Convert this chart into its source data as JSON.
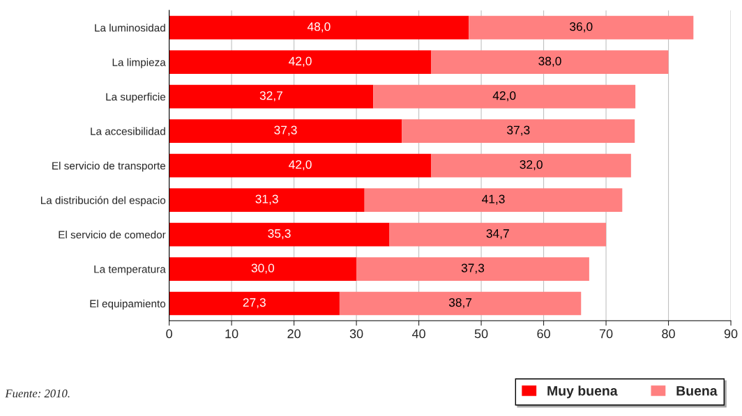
{
  "chart_data": {
    "type": "bar",
    "orientation": "horizontal",
    "stacked": true,
    "categories": [
      "La luminosidad",
      "La limpieza",
      "La superficie",
      "La accesibilidad",
      "El servicio de transporte",
      "La distribución del espacio",
      "El servicio de comedor",
      "La temperatura",
      "El equipamiento"
    ],
    "series": [
      {
        "name": "Muy buena",
        "color": "#ff0000",
        "values": [
          48.0,
          42.0,
          32.7,
          37.3,
          42.0,
          31.3,
          35.3,
          30.0,
          27.3
        ],
        "value_labels": [
          "48,0",
          "42,0",
          "32,7",
          "37,3",
          "42,0",
          "31,3",
          "35,3",
          "30,0",
          "27,3"
        ]
      },
      {
        "name": "Buena",
        "color": "#ff8080",
        "values": [
          36.0,
          38.0,
          42.0,
          37.3,
          32.0,
          41.3,
          34.7,
          37.3,
          38.7
        ],
        "value_labels": [
          "36,0",
          "38,0",
          "42,0",
          "37,3",
          "32,0",
          "41,3",
          "34,7",
          "37,3",
          "38,7"
        ]
      }
    ],
    "xlim": [
      0,
      90
    ],
    "xticks": [
      0,
      10,
      20,
      30,
      40,
      50,
      60,
      70,
      80,
      90
    ],
    "grid": "x",
    "legend": "bottom right",
    "annotations": [
      "Fuente: 2010."
    ]
  }
}
